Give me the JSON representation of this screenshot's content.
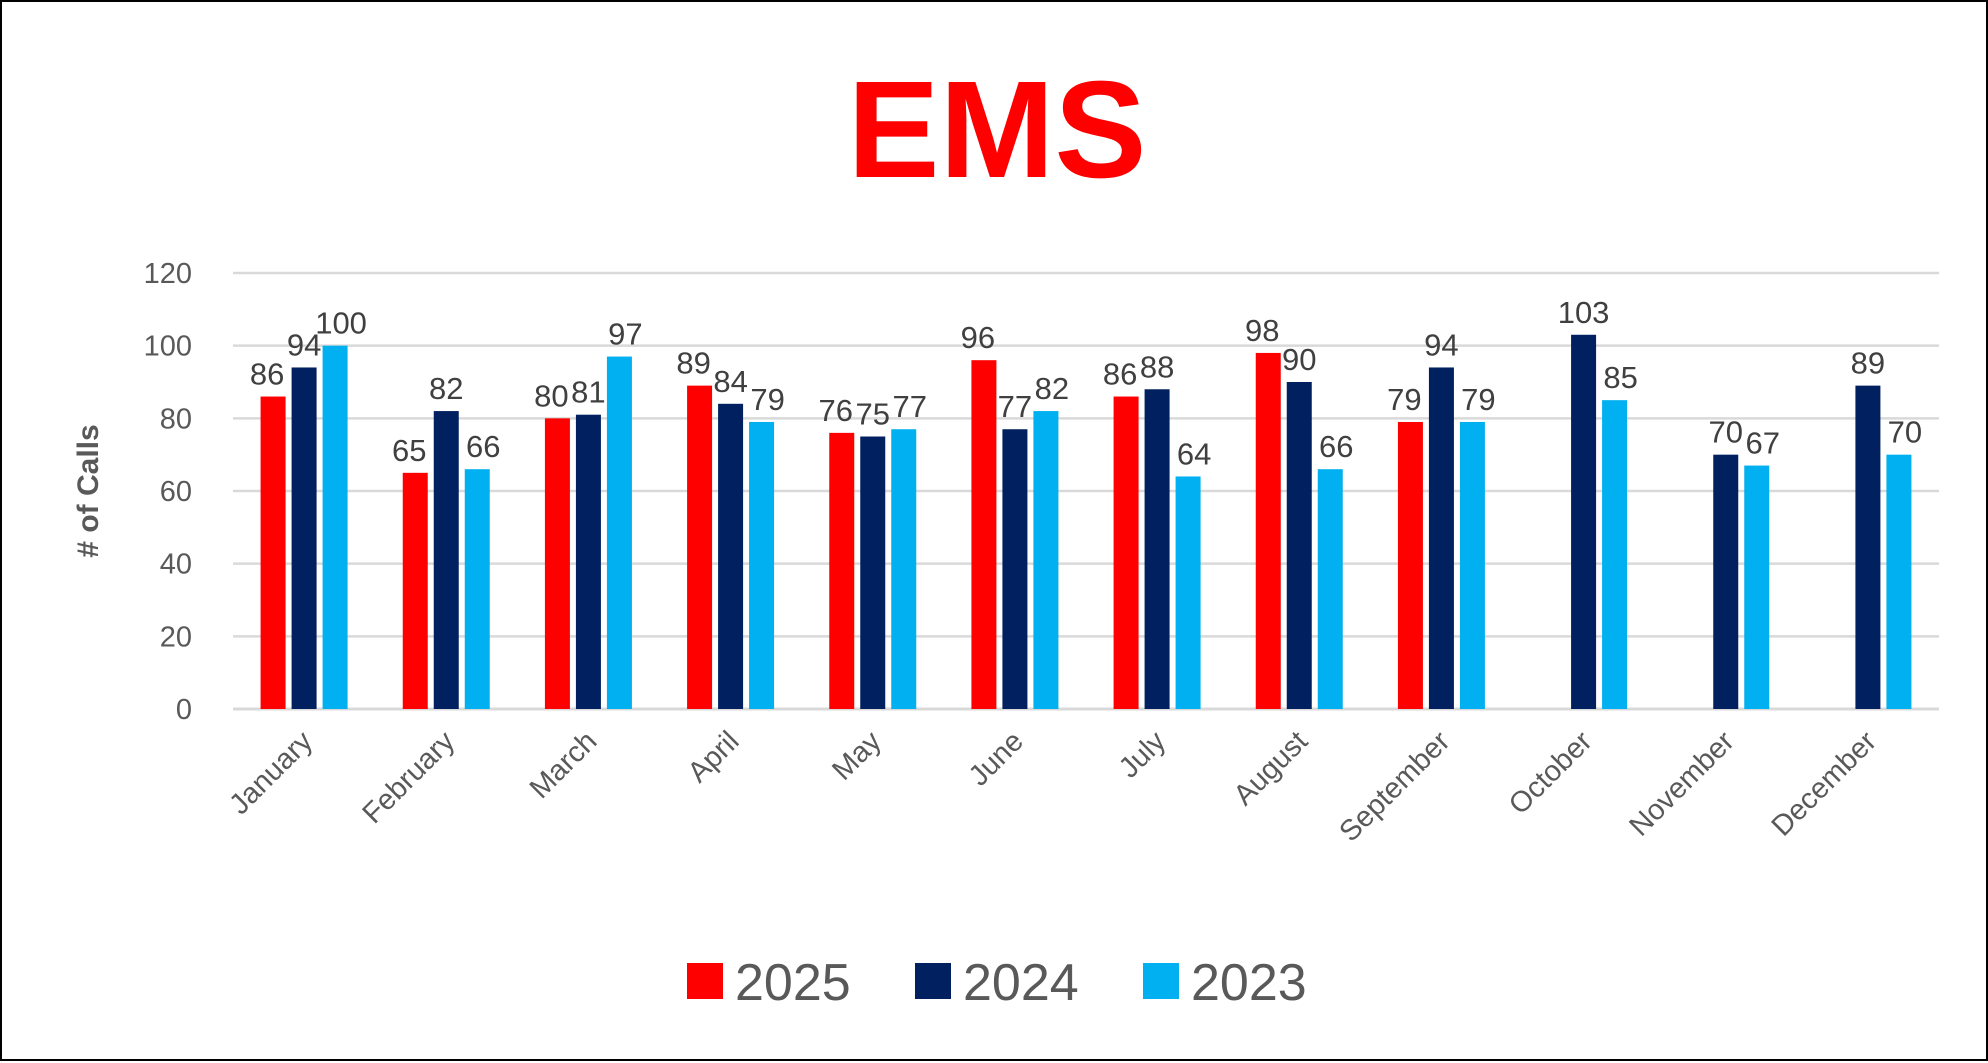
{
  "chart_data": {
    "type": "bar",
    "title": "EMS",
    "xlabel": "",
    "ylabel": "# of Calls",
    "ylim": [
      0,
      120
    ],
    "yticks": [
      0,
      20,
      40,
      60,
      80,
      100,
      120
    ],
    "grid": true,
    "legend_position": "bottom",
    "categories": [
      "January",
      "February",
      "March",
      "April",
      "May",
      "June",
      "July",
      "August",
      "September",
      "October",
      "November",
      "December"
    ],
    "series": [
      {
        "name": "2025",
        "color": "#ff0000",
        "values": [
          86,
          65,
          80,
          89,
          76,
          96,
          86,
          98,
          79,
          null,
          null,
          null
        ]
      },
      {
        "name": "2024",
        "color": "#002060",
        "values": [
          94,
          82,
          81,
          84,
          75,
          77,
          88,
          90,
          94,
          103,
          70,
          89
        ]
      },
      {
        "name": "2023",
        "color": "#00b0f0",
        "values": [
          100,
          66,
          97,
          79,
          77,
          82,
          64,
          66,
          79,
          85,
          67,
          70
        ]
      }
    ]
  }
}
